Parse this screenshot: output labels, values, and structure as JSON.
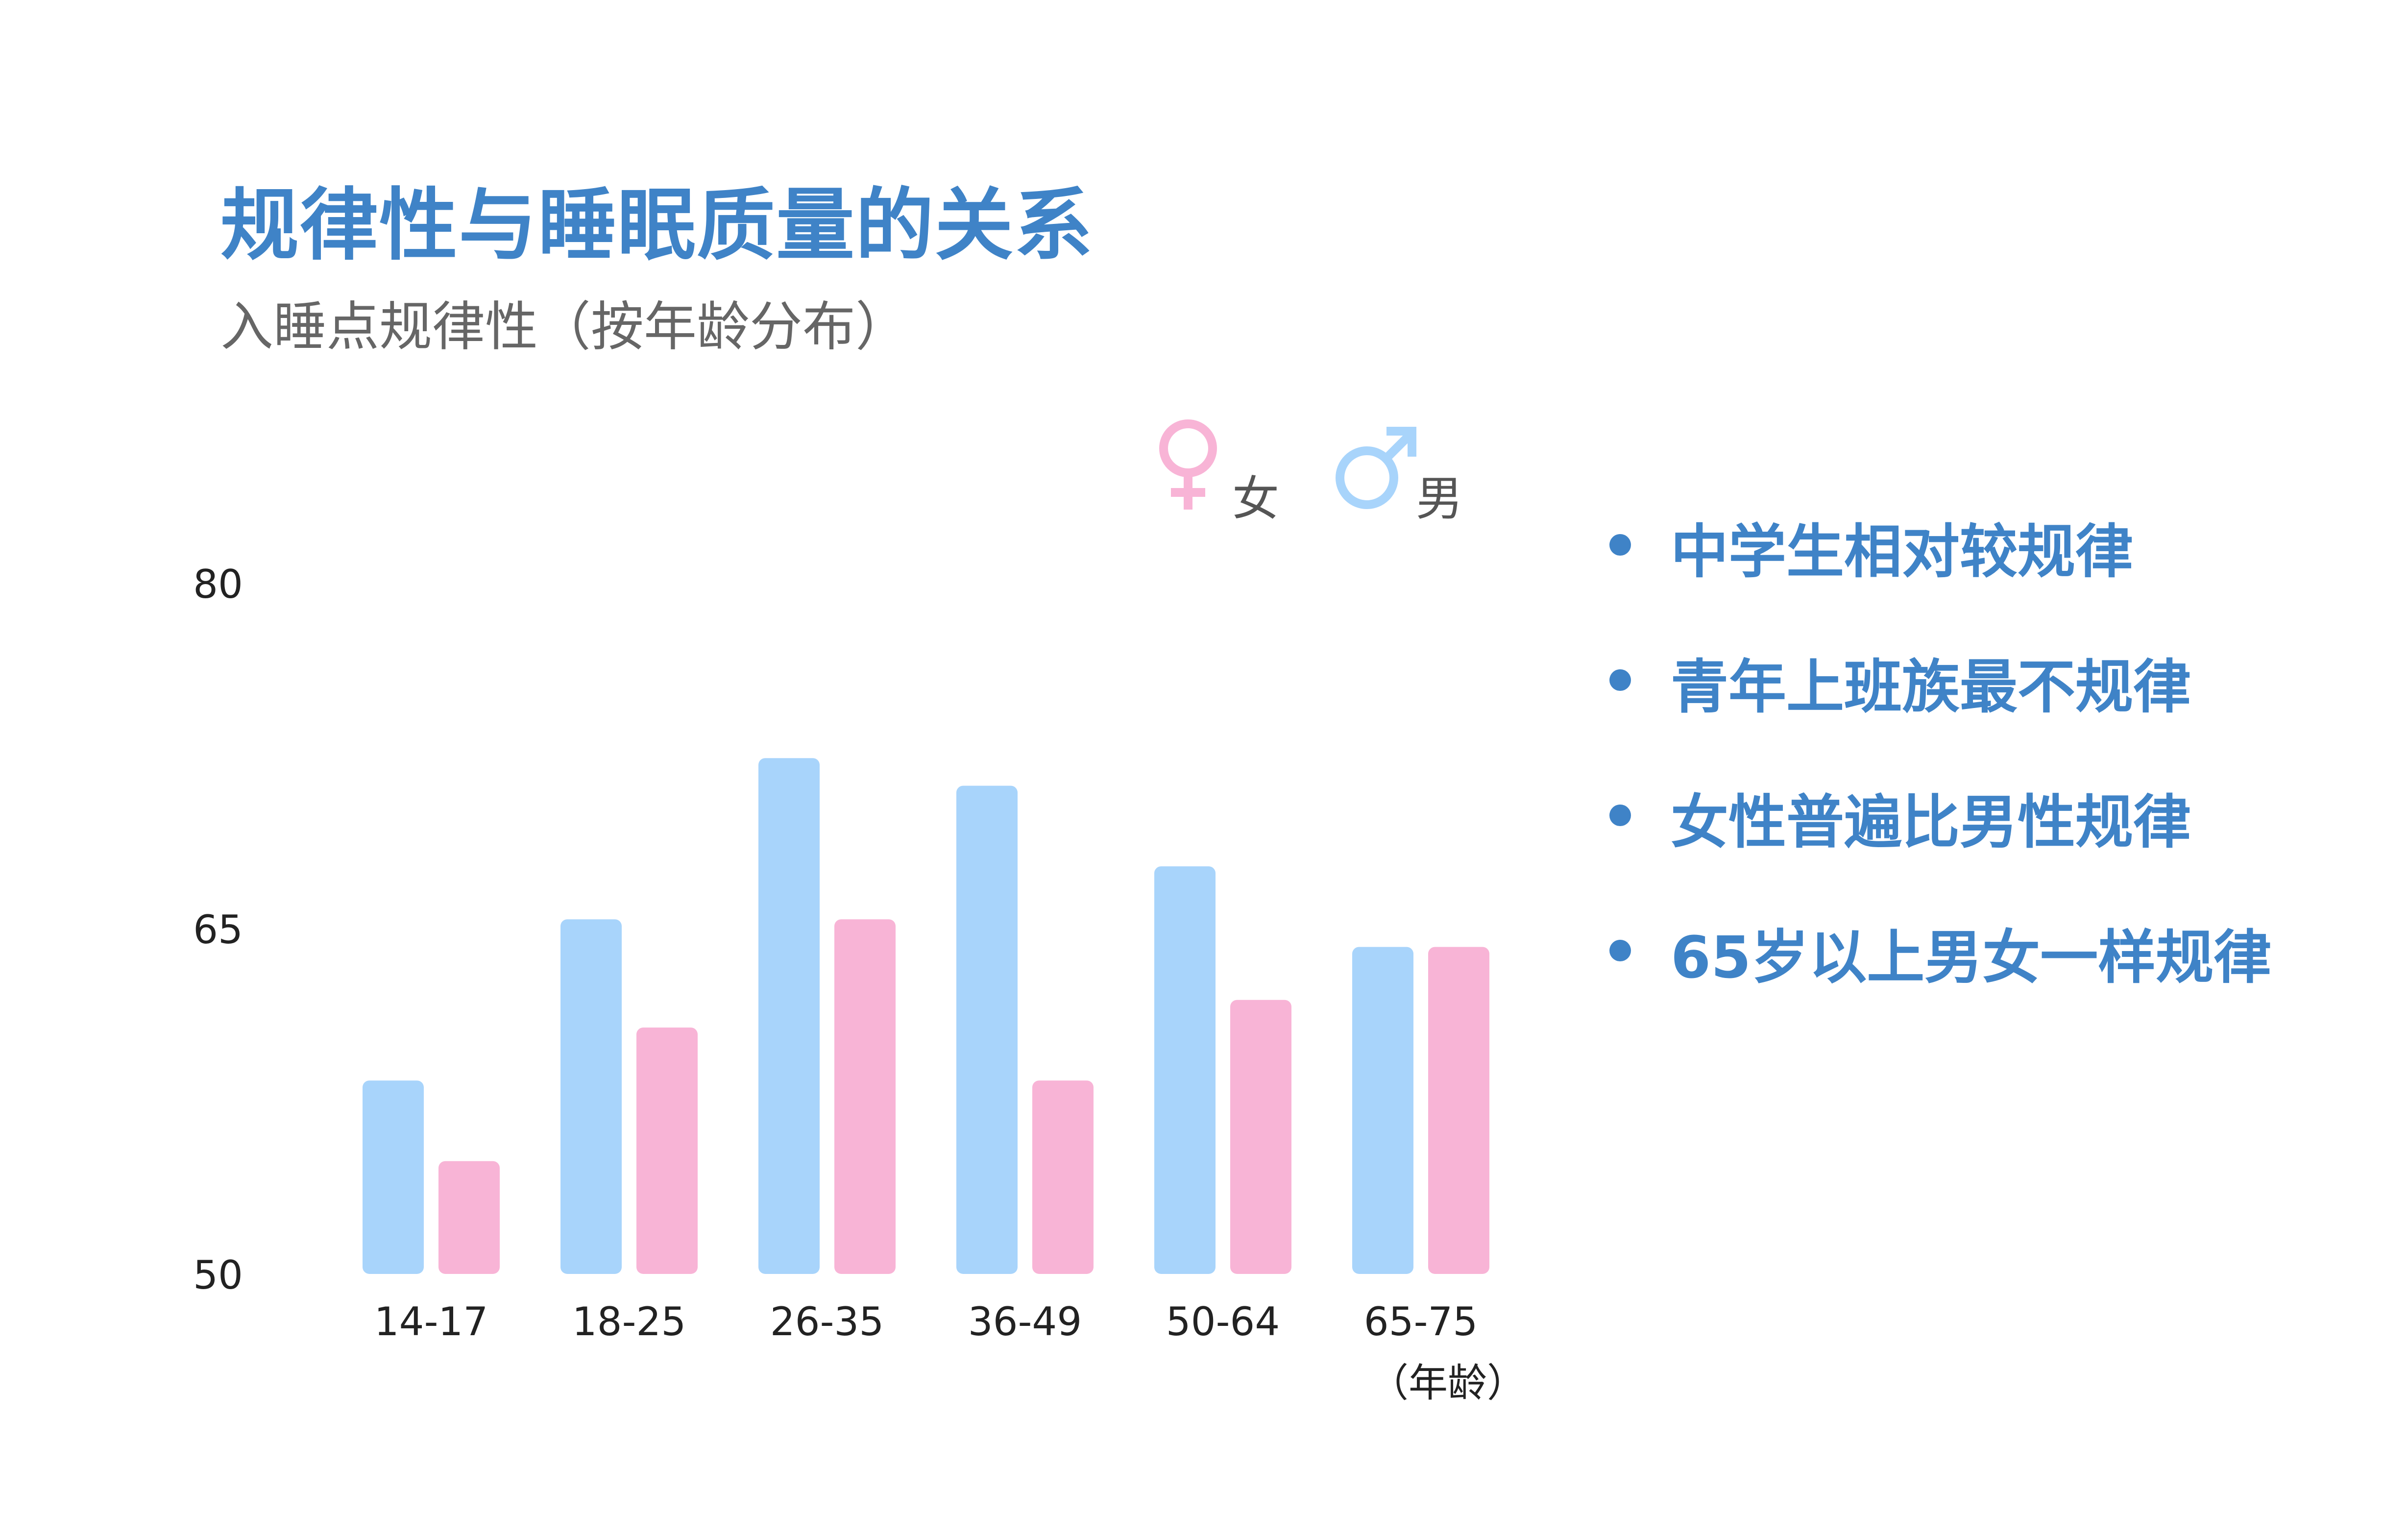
{
  "title": "规律性与睡眠质量的关系",
  "subtitle": "入睡点规律性（按年龄分布）",
  "legend": {
    "female_label": "女",
    "male_label": "男",
    "female_icon": "female-symbol-icon",
    "male_icon": "male-symbol-icon"
  },
  "colors": {
    "male": "#a8d4fb",
    "female": "#f8b4d6",
    "accent": "#3f83c7"
  },
  "bullets": [
    "中学生相对较规律",
    "青年上班族最不规律",
    "女性普遍比男性规律",
    "65岁以上男女一样规律"
  ],
  "chart_data": {
    "type": "bar",
    "categories": [
      "14-17",
      "18-25",
      "26-35",
      "36-49",
      "50-64",
      "65-75"
    ],
    "series": [
      {
        "name": "男",
        "values": [
          58.4,
          65.4,
          72.4,
          71.2,
          67.7,
          64.2
        ]
      },
      {
        "name": "女",
        "values": [
          54.9,
          60.7,
          65.4,
          58.4,
          61.9,
          64.2
        ]
      }
    ],
    "ylim": [
      50,
      80
    ],
    "yticks": [
      "50",
      "65",
      "80"
    ],
    "xlabel": "（年龄）",
    "ylabel": "",
    "grid": false,
    "legend_position": "top"
  }
}
